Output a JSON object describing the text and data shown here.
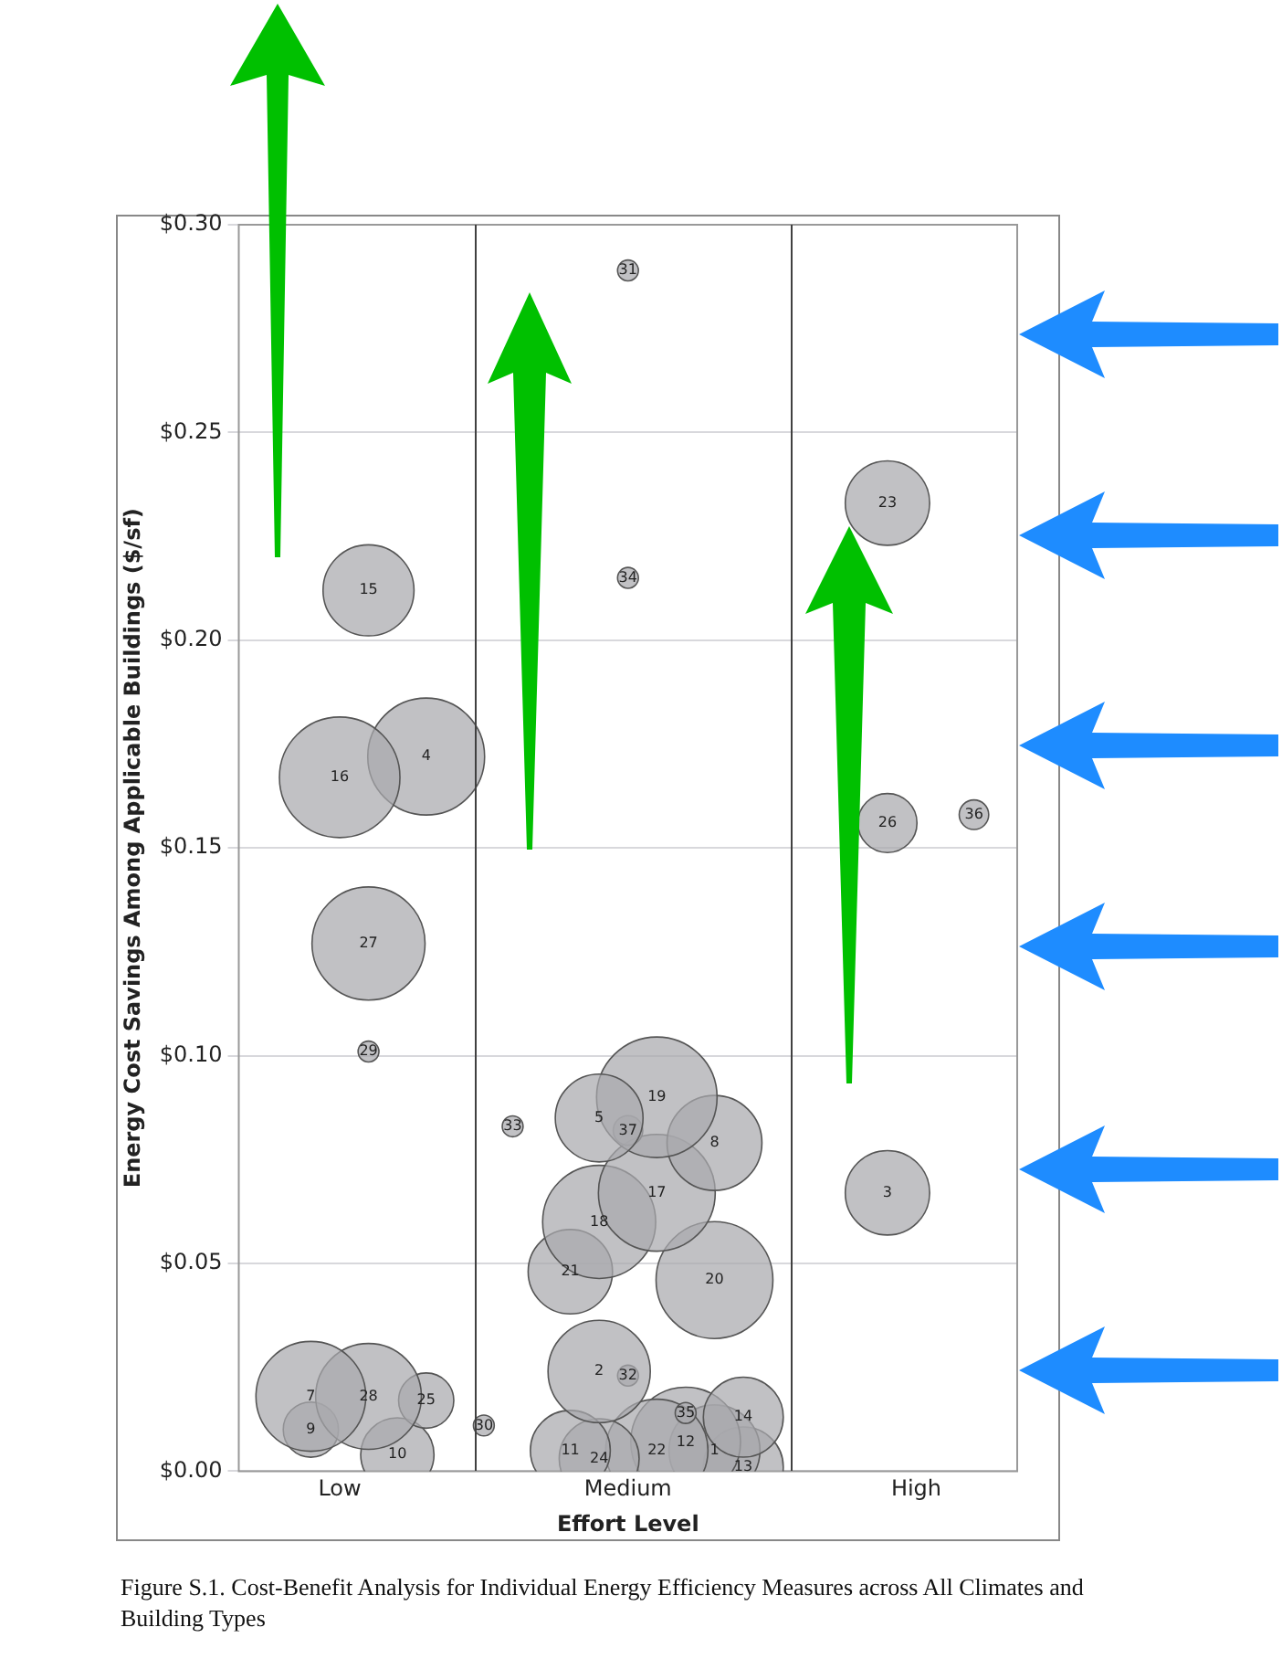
{
  "chart_data": {
    "type": "bubble",
    "xlabel": "Effort Level",
    "ylabel": "Energy Cost Savings Among Applicable Buildings ($/sf)",
    "categories": [
      null,
      null,
      null,
      "Low",
      null,
      null,
      null,
      null,
      null,
      null,
      null,
      null,
      null,
      "Medium",
      null,
      null,
      null,
      null,
      null,
      null,
      null,
      null,
      null,
      "High",
      null,
      null,
      null
    ],
    "ylim": [
      0,
      0.3
    ],
    "yticks": [
      {
        "value": 0,
        "label": "$0.00"
      },
      {
        "value": 0.05,
        "label": "$0.05"
      },
      {
        "value": 0.1,
        "label": "$0.10"
      },
      {
        "value": 0.15,
        "label": "$0.15"
      },
      {
        "value": 0.2,
        "label": "$0.20"
      },
      {
        "value": 0.25,
        "label": "$0.25"
      },
      {
        "value": 0.3,
        "label": "$0.30"
      }
    ],
    "grid": "y",
    "legend": false,
    "series": [
      {
        "name": "15",
        "color": "#a9a9ad",
        "values": [
          null,
          null,
          null,
          null,
          0.212,
          null,
          null,
          null,
          null,
          null,
          null,
          null,
          null,
          null,
          null,
          null,
          null,
          null,
          null,
          null,
          null,
          null,
          null,
          null,
          null,
          null,
          null
        ],
        "sizes": [
          null,
          null,
          null,
          null,
          0.57,
          null,
          null,
          null,
          null,
          null,
          null,
          null,
          null,
          null,
          null,
          null,
          null,
          null,
          null,
          null,
          null,
          null,
          null,
          null,
          null,
          null,
          null
        ]
      },
      {
        "name": "16",
        "color": "#a9a9ad",
        "values": [
          null,
          null,
          null,
          0.167,
          null,
          null,
          null,
          null,
          null,
          null,
          null,
          null,
          null,
          null,
          null,
          null,
          null,
          null,
          null,
          null,
          null,
          null,
          null,
          null,
          null,
          null,
          null
        ],
        "sizes": [
          null,
          null,
          null,
          1.0,
          null,
          null,
          null,
          null,
          null,
          null,
          null,
          null,
          null,
          null,
          null,
          null,
          null,
          null,
          null,
          null,
          null,
          null,
          null,
          null,
          null,
          null,
          null
        ]
      },
      {
        "name": "4",
        "color": "#a9a9ad",
        "values": [
          null,
          null,
          null,
          null,
          null,
          null,
          0.172,
          null,
          null,
          null,
          null,
          null,
          null,
          null,
          null,
          null,
          null,
          null,
          null,
          null,
          null,
          null,
          null,
          null,
          null,
          null,
          null
        ],
        "sizes": [
          null,
          null,
          null,
          null,
          null,
          null,
          0.94,
          null,
          null,
          null,
          null,
          null,
          null,
          null,
          null,
          null,
          null,
          null,
          null,
          null,
          null,
          null,
          null,
          null,
          null,
          null,
          null
        ]
      },
      {
        "name": "27",
        "color": "#a9a9ad",
        "values": [
          null,
          null,
          null,
          null,
          0.127,
          null,
          null,
          null,
          null,
          null,
          null,
          null,
          null,
          null,
          null,
          null,
          null,
          null,
          null,
          null,
          null,
          null,
          null,
          null,
          null,
          null,
          null
        ],
        "sizes": [
          null,
          null,
          null,
          null,
          0.88,
          null,
          null,
          null,
          null,
          null,
          null,
          null,
          null,
          null,
          null,
          null,
          null,
          null,
          null,
          null,
          null,
          null,
          null,
          null,
          null,
          null,
          null
        ]
      },
      {
        "name": "29",
        "color": "#a9a9ad",
        "values": [
          null,
          null,
          null,
          null,
          0.101,
          null,
          null,
          null,
          null,
          null,
          null,
          null,
          null,
          null,
          null,
          null,
          null,
          null,
          null,
          null,
          null,
          null,
          null,
          null,
          null,
          null,
          null
        ],
        "sizes": [
          null,
          null,
          null,
          null,
          0.03,
          null,
          null,
          null,
          null,
          null,
          null,
          null,
          null,
          null,
          null,
          null,
          null,
          null,
          null,
          null,
          null,
          null,
          null,
          null,
          null,
          null,
          null
        ]
      },
      {
        "name": "7",
        "color": "#a9a9ad",
        "values": [
          null,
          null,
          0.018,
          null,
          null,
          null,
          null,
          null,
          null,
          null,
          null,
          null,
          null,
          null,
          null,
          null,
          null,
          null,
          null,
          null,
          null,
          null,
          null,
          null,
          null,
          null,
          null
        ],
        "sizes": [
          null,
          null,
          0.83,
          null,
          null,
          null,
          null,
          null,
          null,
          null,
          null,
          null,
          null,
          null,
          null,
          null,
          null,
          null,
          null,
          null,
          null,
          null,
          null,
          null,
          null,
          null,
          null
        ]
      },
      {
        "name": "28",
        "color": "#a9a9ad",
        "values": [
          null,
          null,
          null,
          null,
          0.018,
          null,
          null,
          null,
          null,
          null,
          null,
          null,
          null,
          null,
          null,
          null,
          null,
          null,
          null,
          null,
          null,
          null,
          null,
          null,
          null,
          null,
          null
        ],
        "sizes": [
          null,
          null,
          null,
          null,
          0.77,
          null,
          null,
          null,
          null,
          null,
          null,
          null,
          null,
          null,
          null,
          null,
          null,
          null,
          null,
          null,
          null,
          null,
          null,
          null,
          null,
          null,
          null
        ]
      },
      {
        "name": "9",
        "color": "#a9a9ad",
        "values": [
          null,
          null,
          0.01,
          null,
          null,
          null,
          null,
          null,
          null,
          null,
          null,
          null,
          null,
          null,
          null,
          null,
          null,
          null,
          null,
          null,
          null,
          null,
          null,
          null,
          null,
          null,
          null
        ],
        "sizes": [
          null,
          null,
          0.21,
          null,
          null,
          null,
          null,
          null,
          null,
          null,
          null,
          null,
          null,
          null,
          null,
          null,
          null,
          null,
          null,
          null,
          null,
          null,
          null,
          null,
          null,
          null,
          null
        ]
      },
      {
        "name": "25",
        "color": "#a9a9ad",
        "values": [
          null,
          null,
          null,
          null,
          null,
          null,
          0.017,
          null,
          null,
          null,
          null,
          null,
          null,
          null,
          null,
          null,
          null,
          null,
          null,
          null,
          null,
          null,
          null,
          null,
          null,
          null,
          null
        ],
        "sizes": [
          null,
          null,
          null,
          null,
          null,
          null,
          0.21,
          null,
          null,
          null,
          null,
          null,
          null,
          null,
          null,
          null,
          null,
          null,
          null,
          null,
          null,
          null,
          null,
          null,
          null,
          null,
          null
        ]
      },
      {
        "name": "10",
        "color": "#a9a9ad",
        "values": [
          null,
          null,
          null,
          null,
          null,
          0.004,
          null,
          null,
          null,
          null,
          null,
          null,
          null,
          null,
          null,
          null,
          null,
          null,
          null,
          null,
          null,
          null,
          null,
          null,
          null,
          null,
          null
        ],
        "sizes": [
          null,
          null,
          null,
          null,
          null,
          0.37,
          null,
          null,
          null,
          null,
          null,
          null,
          null,
          null,
          null,
          null,
          null,
          null,
          null,
          null,
          null,
          null,
          null,
          null,
          null,
          null,
          null
        ]
      },
      {
        "name": "30",
        "color": "#a9a9ad",
        "values": [
          null,
          null,
          null,
          null,
          null,
          null,
          null,
          null,
          0.011,
          null,
          null,
          null,
          null,
          null,
          null,
          null,
          null,
          null,
          null,
          null,
          null,
          null,
          null,
          null,
          null,
          null,
          null
        ],
        "sizes": [
          null,
          null,
          null,
          null,
          null,
          null,
          null,
          null,
          0.03,
          null,
          null,
          null,
          null,
          null,
          null,
          null,
          null,
          null,
          null,
          null,
          null,
          null,
          null,
          null,
          null,
          null,
          null
        ]
      },
      {
        "name": "31",
        "color": "#a9a9ad",
        "values": [
          null,
          null,
          null,
          null,
          null,
          null,
          null,
          null,
          null,
          null,
          null,
          null,
          null,
          0.289,
          null,
          null,
          null,
          null,
          null,
          null,
          null,
          null,
          null,
          null,
          null,
          null,
          null
        ],
        "sizes": [
          null,
          null,
          null,
          null,
          null,
          null,
          null,
          null,
          null,
          null,
          null,
          null,
          null,
          0.03,
          null,
          null,
          null,
          null,
          null,
          null,
          null,
          null,
          null,
          null,
          null,
          null,
          null
        ]
      },
      {
        "name": "34",
        "color": "#a9a9ad",
        "values": [
          null,
          null,
          null,
          null,
          null,
          null,
          null,
          null,
          null,
          null,
          null,
          null,
          null,
          0.215,
          null,
          null,
          null,
          null,
          null,
          null,
          null,
          null,
          null,
          null,
          null,
          null,
          null
        ],
        "sizes": [
          null,
          null,
          null,
          null,
          null,
          null,
          null,
          null,
          null,
          null,
          null,
          null,
          null,
          0.03,
          null,
          null,
          null,
          null,
          null,
          null,
          null,
          null,
          null,
          null,
          null,
          null,
          null
        ]
      },
      {
        "name": "33",
        "color": "#a9a9ad",
        "values": [
          null,
          null,
          null,
          null,
          null,
          null,
          null,
          null,
          null,
          0.083,
          null,
          null,
          null,
          null,
          null,
          null,
          null,
          null,
          null,
          null,
          null,
          null,
          null,
          null,
          null,
          null,
          null
        ],
        "sizes": [
          null,
          null,
          null,
          null,
          null,
          null,
          null,
          null,
          null,
          0.03,
          null,
          null,
          null,
          null,
          null,
          null,
          null,
          null,
          null,
          null,
          null,
          null,
          null,
          null,
          null,
          null,
          null
        ]
      },
      {
        "name": "5",
        "color": "#a9a9ad",
        "values": [
          null,
          null,
          null,
          null,
          null,
          null,
          null,
          null,
          null,
          null,
          null,
          null,
          0.085,
          null,
          null,
          null,
          null,
          null,
          null,
          null,
          null,
          null,
          null,
          null,
          null,
          null,
          null
        ],
        "sizes": [
          null,
          null,
          null,
          null,
          null,
          null,
          null,
          null,
          null,
          null,
          null,
          null,
          0.53,
          null,
          null,
          null,
          null,
          null,
          null,
          null,
          null,
          null,
          null,
          null,
          null,
          null,
          null
        ]
      },
      {
        "name": "19",
        "color": "#a9a9ad",
        "values": [
          null,
          null,
          null,
          null,
          null,
          null,
          null,
          null,
          null,
          null,
          null,
          null,
          null,
          null,
          0.09,
          null,
          null,
          null,
          null,
          null,
          null,
          null,
          null,
          null,
          null,
          null,
          null
        ],
        "sizes": [
          null,
          null,
          null,
          null,
          null,
          null,
          null,
          null,
          null,
          null,
          null,
          null,
          null,
          null,
          1.0,
          null,
          null,
          null,
          null,
          null,
          null,
          null,
          null,
          null,
          null,
          null,
          null
        ]
      },
      {
        "name": "37",
        "color": "#a9a9ad",
        "values": [
          null,
          null,
          null,
          null,
          null,
          null,
          null,
          null,
          null,
          null,
          null,
          null,
          null,
          0.082,
          null,
          null,
          null,
          null,
          null,
          null,
          null,
          null,
          null,
          null,
          null,
          null,
          null
        ],
        "sizes": [
          null,
          null,
          null,
          null,
          null,
          null,
          null,
          null,
          null,
          null,
          null,
          null,
          null,
          0.06,
          null,
          null,
          null,
          null,
          null,
          null,
          null,
          null,
          null,
          null,
          null,
          null,
          null
        ]
      },
      {
        "name": "8",
        "color": "#a9a9ad",
        "values": [
          null,
          null,
          null,
          null,
          null,
          null,
          null,
          null,
          null,
          null,
          null,
          null,
          null,
          null,
          null,
          null,
          0.079,
          null,
          null,
          null,
          null,
          null,
          null,
          null,
          null,
          null,
          null
        ],
        "sizes": [
          null,
          null,
          null,
          null,
          null,
          null,
          null,
          null,
          null,
          null,
          null,
          null,
          null,
          null,
          null,
          null,
          0.62,
          null,
          null,
          null,
          null,
          null,
          null,
          null,
          null,
          null,
          null
        ]
      },
      {
        "name": "17",
        "color": "#a9a9ad",
        "values": [
          null,
          null,
          null,
          null,
          null,
          null,
          null,
          null,
          null,
          null,
          null,
          null,
          null,
          null,
          0.067,
          null,
          null,
          null,
          null,
          null,
          null,
          null,
          null,
          null,
          null,
          null,
          null
        ],
        "sizes": [
          null,
          null,
          null,
          null,
          null,
          null,
          null,
          null,
          null,
          null,
          null,
          null,
          null,
          null,
          0.94,
          null,
          null,
          null,
          null,
          null,
          null,
          null,
          null,
          null,
          null,
          null,
          null
        ]
      },
      {
        "name": "18",
        "color": "#a9a9ad",
        "values": [
          null,
          null,
          null,
          null,
          null,
          null,
          null,
          null,
          null,
          null,
          null,
          null,
          0.06,
          null,
          null,
          null,
          null,
          null,
          null,
          null,
          null,
          null,
          null,
          null,
          null,
          null,
          null
        ],
        "sizes": [
          null,
          null,
          null,
          null,
          null,
          null,
          null,
          null,
          null,
          null,
          null,
          null,
          0.88,
          null,
          null,
          null,
          null,
          null,
          null,
          null,
          null,
          null,
          null,
          null,
          null,
          null,
          null
        ]
      },
      {
        "name": "21",
        "color": "#a9a9ad",
        "values": [
          null,
          null,
          null,
          null,
          null,
          null,
          null,
          null,
          null,
          null,
          null,
          0.048,
          null,
          null,
          null,
          null,
          null,
          null,
          null,
          null,
          null,
          null,
          null,
          null,
          null,
          null,
          null
        ],
        "sizes": [
          null,
          null,
          null,
          null,
          null,
          null,
          null,
          null,
          null,
          null,
          null,
          0.49,
          null,
          null,
          null,
          null,
          null,
          null,
          null,
          null,
          null,
          null,
          null,
          null,
          null,
          null,
          null
        ]
      },
      {
        "name": "20",
        "color": "#a9a9ad",
        "values": [
          null,
          null,
          null,
          null,
          null,
          null,
          null,
          null,
          null,
          null,
          null,
          null,
          null,
          null,
          null,
          null,
          0.046,
          null,
          null,
          null,
          null,
          null,
          null,
          null,
          null,
          null,
          null
        ],
        "sizes": [
          null,
          null,
          null,
          null,
          null,
          null,
          null,
          null,
          null,
          null,
          null,
          null,
          null,
          null,
          null,
          null,
          0.94,
          null,
          null,
          null,
          null,
          null,
          null,
          null,
          null,
          null,
          null
        ]
      },
      {
        "name": "2",
        "color": "#a9a9ad",
        "values": [
          null,
          null,
          null,
          null,
          null,
          null,
          null,
          null,
          null,
          null,
          null,
          null,
          0.024,
          null,
          null,
          null,
          null,
          null,
          null,
          null,
          null,
          null,
          null,
          null,
          null,
          null,
          null
        ],
        "sizes": [
          null,
          null,
          null,
          null,
          null,
          null,
          null,
          null,
          null,
          null,
          null,
          null,
          0.72,
          null,
          null,
          null,
          null,
          null,
          null,
          null,
          null,
          null,
          null,
          null,
          null,
          null,
          null
        ]
      },
      {
        "name": "32",
        "color": "#a9a9ad",
        "values": [
          null,
          null,
          null,
          null,
          null,
          null,
          null,
          null,
          null,
          null,
          null,
          null,
          null,
          0.023,
          null,
          null,
          null,
          null,
          null,
          null,
          null,
          null,
          null,
          null,
          null,
          null,
          null
        ],
        "sizes": [
          null,
          null,
          null,
          null,
          null,
          null,
          null,
          null,
          null,
          null,
          null,
          null,
          null,
          0.03,
          null,
          null,
          null,
          null,
          null,
          null,
          null,
          null,
          null,
          null,
          null,
          null,
          null
        ]
      },
      {
        "name": "35",
        "color": "#a9a9ad",
        "values": [
          null,
          null,
          null,
          null,
          null,
          null,
          null,
          null,
          null,
          null,
          null,
          null,
          null,
          null,
          null,
          0.014,
          null,
          null,
          null,
          null,
          null,
          null,
          null,
          null,
          null,
          null,
          null
        ],
        "sizes": [
          null,
          null,
          null,
          null,
          null,
          null,
          null,
          null,
          null,
          null,
          null,
          null,
          null,
          null,
          null,
          0.03,
          null,
          null,
          null,
          null,
          null,
          null,
          null,
          null,
          null,
          null,
          null
        ]
      },
      {
        "name": "14",
        "color": "#a9a9ad",
        "values": [
          null,
          null,
          null,
          null,
          null,
          null,
          null,
          null,
          null,
          null,
          null,
          null,
          null,
          null,
          null,
          null,
          null,
          0.013,
          null,
          null,
          null,
          null,
          null,
          null,
          null,
          null,
          null
        ],
        "sizes": [
          null,
          null,
          null,
          null,
          null,
          null,
          null,
          null,
          null,
          null,
          null,
          null,
          null,
          null,
          null,
          null,
          null,
          0.44,
          null,
          null,
          null,
          null,
          null,
          null,
          null,
          null,
          null
        ]
      },
      {
        "name": "11",
        "color": "#a9a9ad",
        "values": [
          null,
          null,
          null,
          null,
          null,
          null,
          null,
          null,
          null,
          null,
          null,
          0.005,
          null,
          null,
          null,
          null,
          null,
          null,
          null,
          null,
          null,
          null,
          null,
          null,
          null,
          null,
          null
        ],
        "sizes": [
          null,
          null,
          null,
          null,
          null,
          null,
          null,
          null,
          null,
          null,
          null,
          0.44,
          null,
          null,
          null,
          null,
          null,
          null,
          null,
          null,
          null,
          null,
          null,
          null,
          null,
          null,
          null
        ]
      },
      {
        "name": "24",
        "color": "#a9a9ad",
        "values": [
          null,
          null,
          null,
          null,
          null,
          null,
          null,
          null,
          null,
          null,
          null,
          null,
          0.003,
          null,
          null,
          null,
          null,
          null,
          null,
          null,
          null,
          null,
          null,
          null,
          null,
          null,
          null
        ],
        "sizes": [
          null,
          null,
          null,
          null,
          null,
          null,
          null,
          null,
          null,
          null,
          null,
          null,
          0.44,
          null,
          null,
          null,
          null,
          null,
          null,
          null,
          null,
          null,
          null,
          null,
          null,
          null,
          null
        ]
      },
      {
        "name": "22",
        "color": "#a9a9ad",
        "values": [
          null,
          null,
          null,
          null,
          null,
          null,
          null,
          null,
          null,
          null,
          null,
          null,
          null,
          null,
          0.005,
          null,
          null,
          null,
          null,
          null,
          null,
          null,
          null,
          null,
          null,
          null,
          null
        ],
        "sizes": [
          null,
          null,
          null,
          null,
          null,
          null,
          null,
          null,
          null,
          null,
          null,
          null,
          null,
          null,
          0.72,
          null,
          null,
          null,
          null,
          null,
          null,
          null,
          null,
          null,
          null,
          null,
          null
        ]
      },
      {
        "name": "12",
        "color": "#a9a9ad",
        "values": [
          null,
          null,
          null,
          null,
          null,
          null,
          null,
          null,
          null,
          null,
          null,
          null,
          null,
          null,
          null,
          0.007,
          null,
          null,
          null,
          null,
          null,
          null,
          null,
          null,
          null,
          null,
          null
        ],
        "sizes": [
          null,
          null,
          null,
          null,
          null,
          null,
          null,
          null,
          null,
          null,
          null,
          null,
          null,
          null,
          null,
          0.83,
          null,
          null,
          null,
          null,
          null,
          null,
          null,
          null,
          null,
          null,
          null
        ]
      },
      {
        "name": "1",
        "color": "#a9a9ad",
        "values": [
          null,
          null,
          null,
          null,
          null,
          null,
          null,
          null,
          null,
          null,
          null,
          null,
          null,
          null,
          null,
          null,
          0.005,
          null,
          null,
          null,
          null,
          null,
          null,
          null,
          null,
          null,
          null
        ],
        "sizes": [
          null,
          null,
          null,
          null,
          null,
          null,
          null,
          null,
          null,
          null,
          null,
          null,
          null,
          null,
          null,
          null,
          0.57,
          null,
          null,
          null,
          null,
          null,
          null,
          null,
          null,
          null,
          null
        ]
      },
      {
        "name": "13",
        "color": "#a9a9ad",
        "values": [
          null,
          null,
          null,
          null,
          null,
          null,
          null,
          null,
          null,
          null,
          null,
          null,
          null,
          null,
          null,
          null,
          null,
          0.001,
          null,
          null,
          null,
          null,
          null,
          null,
          null,
          null,
          null
        ],
        "sizes": [
          null,
          null,
          null,
          null,
          null,
          null,
          null,
          null,
          null,
          null,
          null,
          null,
          null,
          null,
          null,
          null,
          null,
          0.44,
          null,
          null,
          null,
          null,
          null,
          null,
          null,
          null,
          null
        ]
      },
      {
        "name": "23",
        "color": "#a9a9ad",
        "values": [
          null,
          null,
          null,
          null,
          null,
          null,
          null,
          null,
          null,
          null,
          null,
          null,
          null,
          null,
          null,
          null,
          null,
          null,
          null,
          null,
          null,
          null,
          0.233,
          null,
          null,
          null,
          null
        ],
        "sizes": [
          null,
          null,
          null,
          null,
          null,
          null,
          null,
          null,
          null,
          null,
          null,
          null,
          null,
          null,
          null,
          null,
          null,
          null,
          null,
          null,
          null,
          null,
          0.49,
          null,
          null,
          null,
          null
        ]
      },
      {
        "name": "26",
        "color": "#a9a9ad",
        "values": [
          null,
          null,
          null,
          null,
          null,
          null,
          null,
          null,
          null,
          null,
          null,
          null,
          null,
          null,
          null,
          null,
          null,
          null,
          null,
          null,
          null,
          null,
          0.156,
          null,
          null,
          null,
          null
        ],
        "sizes": [
          null,
          null,
          null,
          null,
          null,
          null,
          null,
          null,
          null,
          null,
          null,
          null,
          null,
          null,
          null,
          null,
          null,
          null,
          null,
          null,
          null,
          null,
          0.24,
          null,
          null,
          null,
          null
        ]
      },
      {
        "name": "36",
        "color": "#a9a9ad",
        "values": [
          null,
          null,
          null,
          null,
          null,
          null,
          null,
          null,
          null,
          null,
          null,
          null,
          null,
          null,
          null,
          null,
          null,
          null,
          null,
          null,
          null,
          null,
          null,
          null,
          null,
          0.158,
          null
        ],
        "sizes": [
          null,
          null,
          null,
          null,
          null,
          null,
          null,
          null,
          null,
          null,
          null,
          null,
          null,
          null,
          null,
          null,
          null,
          null,
          null,
          null,
          null,
          null,
          null,
          null,
          null,
          0.06,
          null
        ]
      },
      {
        "name": "3",
        "color": "#a9a9ad",
        "values": [
          null,
          null,
          null,
          null,
          null,
          null,
          null,
          null,
          null,
          null,
          null,
          null,
          null,
          null,
          null,
          null,
          null,
          null,
          null,
          null,
          null,
          null,
          0.067,
          null,
          null,
          null,
          null
        ],
        "sizes": [
          null,
          null,
          null,
          null,
          null,
          null,
          null,
          null,
          null,
          null,
          null,
          null,
          null,
          null,
          null,
          null,
          null,
          null,
          null,
          null,
          null,
          null,
          0.49,
          null,
          null,
          null,
          null
        ]
      }
    ],
    "annotations": [
      "Figure S.1.   Cost-Benefit Analysis for Individual Energy Efficiency Measures across All Climates and Building Types"
    ]
  }
}
